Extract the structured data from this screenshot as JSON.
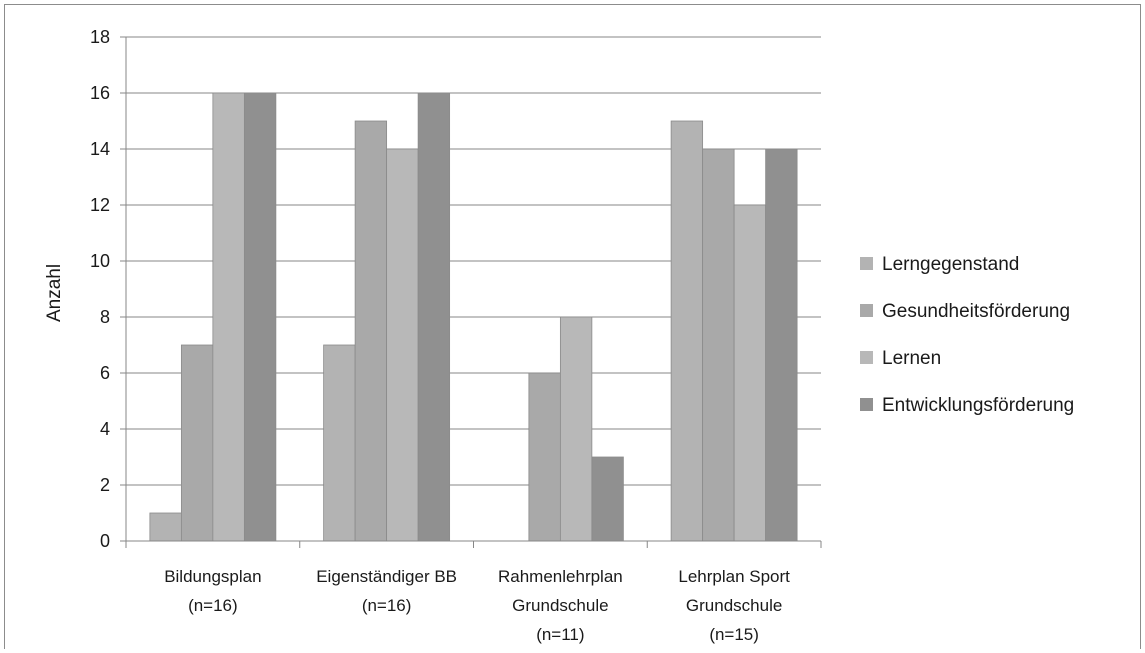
{
  "chart_data": {
    "type": "bar",
    "title": "",
    "xlabel": "",
    "ylabel": "Anzahl",
    "ylim": [
      0,
      18
    ],
    "yticks": [
      0,
      2,
      4,
      6,
      8,
      10,
      12,
      14,
      16,
      18
    ],
    "grid": "horizontal",
    "legend_position": "right",
    "categories": [
      [
        "Bildungsplan",
        "(n=16)"
      ],
      [
        "Eigenständiger BB",
        "(n=16)"
      ],
      [
        "Rahmenlehrplan",
        "Grundschule",
        "(n=11)"
      ],
      [
        "Lehrplan Sport",
        "Grundschule",
        "(n=15)"
      ]
    ],
    "series": [
      {
        "name": "Lerngegenstand",
        "color": "#b3b3b3",
        "values": [
          1,
          7,
          0,
          15
        ]
      },
      {
        "name": "Gesundheitsförderung",
        "color": "#a9a9a9",
        "values": [
          7,
          15,
          6,
          14
        ]
      },
      {
        "name": "Lernen",
        "color": "#b8b8b8",
        "values": [
          16,
          14,
          8,
          12
        ]
      },
      {
        "name": "Entwicklungsförderung",
        "color": "#909090",
        "values": [
          16,
          16,
          3,
          14
        ]
      }
    ]
  }
}
